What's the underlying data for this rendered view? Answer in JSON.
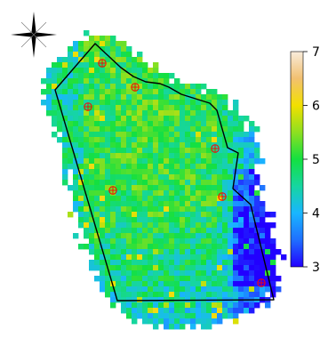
{
  "legend": {
    "ticks": [
      "7",
      "6",
      "5",
      "4",
      "3"
    ],
    "tick_values": [
      7,
      6,
      5,
      4,
      3
    ],
    "range": [
      3,
      7
    ],
    "colors": [
      "#2200ff",
      "#1f6fff",
      "#19b6ff",
      "#16d6a0",
      "#14e040",
      "#8ee020",
      "#f2e000",
      "#f2c070",
      "#f8ecdc"
    ]
  },
  "boundary_color": "#000000",
  "sample_marker_color": "#ff0000",
  "sample_marker_count": 7,
  "north_arrow_icon": "compass-rose-icon"
}
